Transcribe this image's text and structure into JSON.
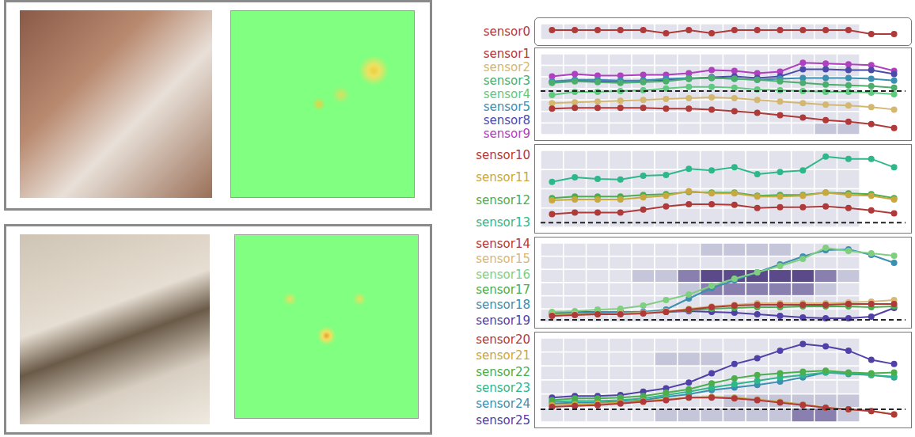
{
  "chart_data": [
    {
      "type": "line",
      "categories": [
        null,
        null,
        null,
        null,
        null,
        null,
        null,
        null,
        null,
        null,
        null,
        null,
        null,
        null,
        null,
        null
      ],
      "ylim": [
        0,
        10
      ],
      "tick_labels": false,
      "grid": false,
      "cells": [
        [
          1,
          1,
          1,
          1,
          1,
          1,
          1,
          1,
          1,
          1,
          1,
          1,
          1,
          1,
          0,
          0
        ]
      ],
      "series": [
        {
          "name": "sensor0",
          "color": "#b03a3a",
          "marker": "circle",
          "values": [
            6,
            6,
            6,
            6,
            6,
            4,
            6,
            4,
            6,
            6,
            6,
            6,
            6,
            6,
            3.5,
            3.5
          ]
        }
      ]
    },
    {
      "type": "line",
      "categories": [
        null,
        null,
        null,
        null,
        null,
        null,
        null,
        null,
        null,
        null,
        null,
        null,
        null,
        null,
        null,
        null
      ],
      "ylim": [
        0,
        10
      ],
      "tick_labels": false,
      "grid": false,
      "baseline": 5.4,
      "cells": [
        [
          1,
          1,
          1,
          1,
          1,
          1,
          1,
          1,
          1,
          1,
          1,
          1,
          1,
          1,
          0,
          0
        ],
        [
          1,
          1,
          1,
          1,
          1,
          1,
          1,
          1,
          1,
          1,
          1,
          1,
          1,
          1,
          0,
          0
        ],
        [
          1,
          1,
          1,
          1,
          1,
          1,
          1,
          1,
          1,
          1,
          1,
          1,
          1,
          1,
          0,
          0
        ],
        [
          1,
          1,
          1,
          1,
          1,
          1,
          1,
          1,
          1,
          1,
          1,
          1,
          1,
          1,
          0,
          0
        ],
        [
          1,
          1,
          1,
          1,
          1,
          1,
          1,
          1,
          1,
          1,
          1,
          1,
          1,
          1,
          0,
          0
        ],
        [
          1,
          1,
          1,
          1,
          1,
          1,
          1,
          1,
          1,
          1,
          1,
          1,
          1,
          1,
          0,
          0
        ],
        [
          1,
          1,
          1,
          1,
          1,
          1,
          1,
          1,
          1,
          1,
          1,
          1,
          2,
          2,
          0,
          0
        ]
      ],
      "series": [
        {
          "name": "sensor1",
          "color": "#b03a3a",
          "marker": "circle",
          "values": [
            3.2,
            3.3,
            3.3,
            3.3,
            3.3,
            3.2,
            3.2,
            3.1,
            2.9,
            2.7,
            2.4,
            2.1,
            1.8,
            1.6,
            1.3,
            0.8
          ]
        },
        {
          "name": "sensor2",
          "color": "#d4b870",
          "marker": "circle",
          "values": [
            3.9,
            4.0,
            4.1,
            4.2,
            4.3,
            4.4,
            4.5,
            4.6,
            4.5,
            4.3,
            4.1,
            3.9,
            3.7,
            3.6,
            3.4,
            3.1
          ]
        },
        {
          "name": "sensor3",
          "color": "#4cae6c",
          "marker": "circle",
          "values": [
            6.4,
            6.6,
            6.5,
            6.4,
            6.5,
            6.6,
            6.9,
            7.0,
            6.9,
            6.8,
            6.6,
            6.4,
            6.2,
            6.1,
            6.0,
            5.8
          ]
        },
        {
          "name": "sensor4",
          "color": "#5fc97f",
          "marker": "circle",
          "values": [
            4.9,
            5.3,
            5.3,
            5.4,
            5.5,
            5.7,
            5.9,
            5.9,
            5.8,
            5.6,
            5.5,
            5.4,
            5.3,
            5.3,
            5.2,
            5.0
          ]
        },
        {
          "name": "sensor5",
          "color": "#3b8fb0",
          "marker": "circle",
          "values": [
            6.6,
            6.8,
            6.8,
            6.7,
            6.7,
            6.9,
            7.0,
            7.0,
            6.9,
            6.8,
            6.9,
            7.0,
            7.0,
            7.0,
            6.9,
            6.7
          ]
        },
        {
          "name": "sensor8",
          "color": "#4b4ba8",
          "marker": "circle",
          "values": [
            6.5,
            6.7,
            6.6,
            6.6,
            6.7,
            6.8,
            6.9,
            7.1,
            7.2,
            7.0,
            7.2,
            8.1,
            8.1,
            8.0,
            8.0,
            7.5
          ]
        },
        {
          "name": "sensor9",
          "color": "#b040c0",
          "marker": "circle",
          "values": [
            7.2,
            7.5,
            7.3,
            7.3,
            7.4,
            7.4,
            7.6,
            8.0,
            7.9,
            7.6,
            7.8,
            8.9,
            8.8,
            8.7,
            8.6,
            7.9
          ]
        }
      ]
    },
    {
      "type": "line",
      "categories": [
        null,
        null,
        null,
        null,
        null,
        null,
        null,
        null,
        null,
        null,
        null,
        null,
        null,
        null,
        null,
        null
      ],
      "ylim": [
        0,
        10
      ],
      "tick_labels": false,
      "grid": false,
      "baseline": 0.6,
      "cells": [
        [
          1,
          1,
          1,
          1,
          1,
          1,
          1,
          1,
          1,
          1,
          1,
          1,
          1,
          1,
          0,
          0
        ],
        [
          1,
          1,
          1,
          1,
          1,
          1,
          1,
          1,
          1,
          1,
          1,
          1,
          1,
          1,
          0,
          0
        ],
        [
          1,
          1,
          1,
          1,
          1,
          1,
          1,
          1,
          1,
          1,
          1,
          1,
          1,
          1,
          0,
          0
        ],
        [
          1,
          1,
          1,
          1,
          1,
          1,
          1,
          1,
          1,
          1,
          1,
          1,
          1,
          1,
          0,
          0
        ]
      ],
      "series": [
        {
          "name": "sensor10",
          "color": "#b03a3a",
          "marker": "circle",
          "values": [
            1.7,
            1.9,
            1.9,
            1.9,
            2.3,
            2.7,
            3.0,
            3.0,
            2.9,
            2.5,
            2.6,
            2.6,
            2.7,
            2.5,
            2.2,
            1.8
          ]
        },
        {
          "name": "sensor11",
          "color": "#c8a840",
          "marker": "circle",
          "values": [
            3.5,
            3.6,
            3.6,
            3.6,
            3.9,
            4.1,
            4.7,
            4.4,
            4.4,
            4.0,
            4.0,
            4.1,
            4.5,
            4.2,
            4.1,
            3.6
          ]
        },
        {
          "name": "sensor12",
          "color": "#4cae4c",
          "marker": "circle",
          "values": [
            3.8,
            4.0,
            4.0,
            4.0,
            4.2,
            4.3,
            4.6,
            4.5,
            4.5,
            4.1,
            4.2,
            4.2,
            4.5,
            4.4,
            4.3,
            3.8
          ]
        },
        {
          "name": "sensor13",
          "color": "#2eb88a",
          "marker": "circle",
          "values": [
            5.9,
            6.5,
            6.3,
            6.2,
            6.7,
            6.8,
            7.6,
            7.4,
            7.8,
            6.9,
            7.2,
            7.4,
            9.2,
            8.9,
            8.9,
            7.8
          ]
        }
      ]
    },
    {
      "type": "line",
      "categories": [
        null,
        null,
        null,
        null,
        null,
        null,
        null,
        null,
        null,
        null,
        null,
        null,
        null,
        null,
        null,
        null
      ],
      "ylim": [
        0,
        10
      ],
      "tick_labels": false,
      "grid": false,
      "baseline": 0.3,
      "cells": [
        [
          1,
          1,
          1,
          1,
          1,
          1,
          1,
          2,
          2,
          2,
          2,
          1,
          1,
          1,
          0,
          0
        ],
        [
          1,
          1,
          1,
          1,
          1,
          1,
          1,
          1,
          1,
          1,
          1,
          1,
          1,
          1,
          0,
          0
        ],
        [
          1,
          1,
          1,
          1,
          2,
          2,
          3,
          4,
          4,
          4,
          4,
          4,
          3,
          2,
          0,
          0
        ],
        [
          1,
          1,
          1,
          1,
          1,
          1,
          2,
          3,
          3,
          3,
          3,
          3,
          2,
          1,
          0,
          0
        ],
        [
          1,
          1,
          1,
          1,
          1,
          1,
          1,
          1,
          1,
          1,
          1,
          1,
          1,
          1,
          0,
          0
        ],
        [
          1,
          1,
          1,
          1,
          1,
          1,
          1,
          1,
          1,
          1,
          1,
          1,
          1,
          1,
          0,
          0
        ]
      ],
      "series": [
        {
          "name": "sensor14",
          "color": "#b03a3a",
          "marker": "circle",
          "values": [
            0.8,
            0.9,
            1.0,
            1.0,
            1.1,
            1.3,
            1.6,
            1.9,
            2.1,
            2.2,
            2.2,
            2.2,
            2.2,
            2.3,
            2.3,
            2.3
          ]
        },
        {
          "name": "sensor15",
          "color": "#d8b878",
          "marker": "circle",
          "values": [
            0.9,
            1.0,
            1.0,
            1.1,
            1.2,
            1.4,
            1.7,
            2.0,
            2.2,
            2.4,
            2.4,
            2.4,
            2.4,
            2.5,
            2.6,
            2.8
          ]
        },
        {
          "name": "sensor16",
          "color": "#7fcf7f",
          "marker": "circle",
          "values": [
            1.3,
            1.4,
            1.6,
            1.7,
            2.1,
            2.8,
            3.5,
            4.6,
            5.5,
            6.3,
            7.1,
            8.0,
            9.4,
            9.0,
            8.7,
            8.4
          ]
        },
        {
          "name": "sensor17",
          "color": "#4cae4c",
          "marker": "circle",
          "values": [
            1.0,
            1.1,
            1.1,
            1.1,
            1.2,
            1.3,
            1.5,
            1.7,
            1.8,
            1.9,
            1.9,
            2.0,
            2.0,
            2.0,
            1.9,
            2.0
          ]
        },
        {
          "name": "sensor18",
          "color": "#3b8fb0",
          "marker": "circle",
          "values": [
            1.1,
            1.2,
            1.3,
            1.3,
            1.3,
            1.6,
            3.0,
            4.3,
            5.3,
            6.3,
            7.3,
            8.3,
            9.1,
            9.2,
            8.5,
            7.5
          ]
        },
        {
          "name": "sensor19",
          "color": "#5040a8",
          "marker": "circle",
          "values": [
            1.2,
            1.3,
            1.3,
            1.3,
            1.3,
            1.3,
            1.4,
            1.3,
            1.2,
            1.0,
            0.8,
            0.6,
            0.5,
            0.5,
            0.7,
            1.8
          ]
        }
      ]
    },
    {
      "type": "line",
      "categories": [
        null,
        null,
        null,
        null,
        null,
        null,
        null,
        null,
        null,
        null,
        null,
        null,
        null,
        null,
        null,
        null
      ],
      "ylim": [
        0,
        10
      ],
      "tick_labels": false,
      "grid": false,
      "baseline": 1.5,
      "cells": [
        [
          1,
          1,
          1,
          1,
          1,
          1,
          1,
          1,
          1,
          1,
          1,
          1,
          1,
          1,
          0,
          0
        ],
        [
          1,
          1,
          1,
          1,
          1,
          2,
          2,
          2,
          1,
          1,
          1,
          1,
          1,
          1,
          0,
          0
        ],
        [
          1,
          1,
          1,
          1,
          1,
          1,
          1,
          1,
          1,
          1,
          1,
          1,
          1,
          1,
          0,
          0
        ],
        [
          1,
          1,
          1,
          1,
          1,
          1,
          1,
          1,
          1,
          1,
          1,
          1,
          1,
          1,
          0,
          0
        ],
        [
          1,
          1,
          1,
          1,
          1,
          1,
          1,
          1,
          2,
          2,
          2,
          2,
          2,
          2,
          0,
          0
        ],
        [
          1,
          1,
          1,
          1,
          1,
          2,
          2,
          2,
          2,
          2,
          2,
          3,
          3,
          2,
          0,
          0
        ]
      ],
      "series": [
        {
          "name": "sensor20",
          "color": "#b03a3a",
          "marker": "circle",
          "values": [
            1.8,
            1.9,
            2.0,
            2.2,
            2.4,
            2.6,
            2.9,
            2.9,
            2.8,
            2.6,
            2.3,
            2.0,
            1.7,
            1.5,
            1.3,
            0.9
          ]
        },
        {
          "name": "sensor21",
          "color": "#c8a840",
          "marker": "circle",
          "values": [
            2.0,
            2.1,
            2.2,
            2.3,
            2.5,
            2.7,
            2.9,
            3.0,
            2.9,
            2.7,
            2.4,
            2.1,
            1.7,
            1.5,
            1.3,
            0.9
          ]
        },
        {
          "name": "sensor22",
          "color": "#4cae4c",
          "marker": "circle",
          "values": [
            2.6,
            2.8,
            2.8,
            2.9,
            3.1,
            3.5,
            3.9,
            4.6,
            5.2,
            5.6,
            5.8,
            6.0,
            6.1,
            5.9,
            5.8,
            5.9
          ]
        },
        {
          "name": "sensor23",
          "color": "#2eb88a",
          "marker": "circle",
          "values": [
            2.4,
            2.5,
            2.5,
            2.6,
            2.8,
            3.2,
            3.6,
            4.1,
            4.5,
            4.9,
            5.3,
            5.6,
            5.9,
            5.8,
            5.6,
            5.4
          ]
        },
        {
          "name": "sensor24",
          "color": "#3b8fb0",
          "marker": "circle",
          "values": [
            2.2,
            2.3,
            2.3,
            2.4,
            2.6,
            3.0,
            3.3,
            3.8,
            4.1,
            4.4,
            4.8,
            5.3,
            5.9,
            5.7,
            5.6,
            5.3
          ]
        },
        {
          "name": "sensor25",
          "color": "#5040a8",
          "marker": "circle",
          "values": [
            2.9,
            3.1,
            3.1,
            3.2,
            3.6,
            4.0,
            4.7,
            5.8,
            6.9,
            7.6,
            8.5,
            9.3,
            9.0,
            8.5,
            7.4,
            6.9
          ]
        }
      ]
    }
  ]
}
